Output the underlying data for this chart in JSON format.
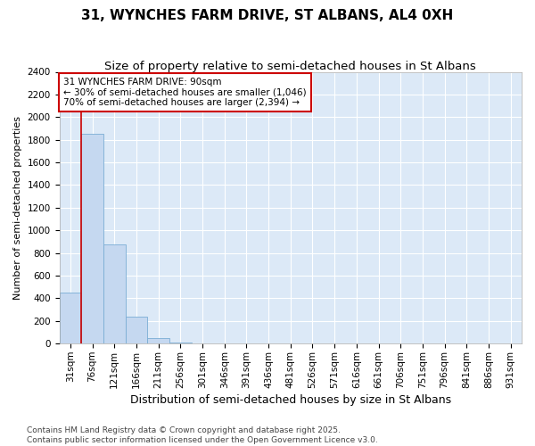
{
  "title_line1": "31, WYNCHES FARM DRIVE, ST ALBANS, AL4 0XH",
  "title_line2": "Size of property relative to semi-detached houses in St Albans",
  "categories": [
    "31sqm",
    "76sqm",
    "121sqm",
    "166sqm",
    "211sqm",
    "256sqm",
    "301sqm",
    "346sqm",
    "391sqm",
    "436sqm",
    "481sqm",
    "526sqm",
    "571sqm",
    "616sqm",
    "661sqm",
    "706sqm",
    "751sqm",
    "796sqm",
    "841sqm",
    "886sqm",
    "931sqm"
  ],
  "values": [
    450,
    1850,
    880,
    240,
    50,
    10,
    4,
    0,
    0,
    0,
    0,
    0,
    0,
    0,
    0,
    0,
    0,
    0,
    0,
    0,
    0
  ],
  "bar_color": "#c5d8f0",
  "bar_edge_color": "#7aadd4",
  "figure_bg": "#ffffff",
  "plot_bg": "#dce9f7",
  "grid_color": "#ffffff",
  "red_line_index": 1,
  "annotation_text": "31 WYNCHES FARM DRIVE: 90sqm\n← 30% of semi-detached houses are smaller (1,046)\n70% of semi-detached houses are larger (2,394) →",
  "annotation_box_facecolor": "#ffffff",
  "annotation_box_edgecolor": "#cc0000",
  "ylabel": "Number of semi-detached properties",
  "xlabel": "Distribution of semi-detached houses by size in St Albans",
  "ylim": [
    0,
    2400
  ],
  "yticks": [
    0,
    200,
    400,
    600,
    800,
    1000,
    1200,
    1400,
    1600,
    1800,
    2000,
    2200,
    2400
  ],
  "footnote": "Contains HM Land Registry data © Crown copyright and database right 2025.\nContains public sector information licensed under the Open Government Licence v3.0.",
  "title_fontsize": 11,
  "subtitle_fontsize": 9.5,
  "xlabel_fontsize": 9,
  "ylabel_fontsize": 8,
  "tick_fontsize": 7.5,
  "annot_fontsize": 7.5,
  "footnote_fontsize": 6.5
}
